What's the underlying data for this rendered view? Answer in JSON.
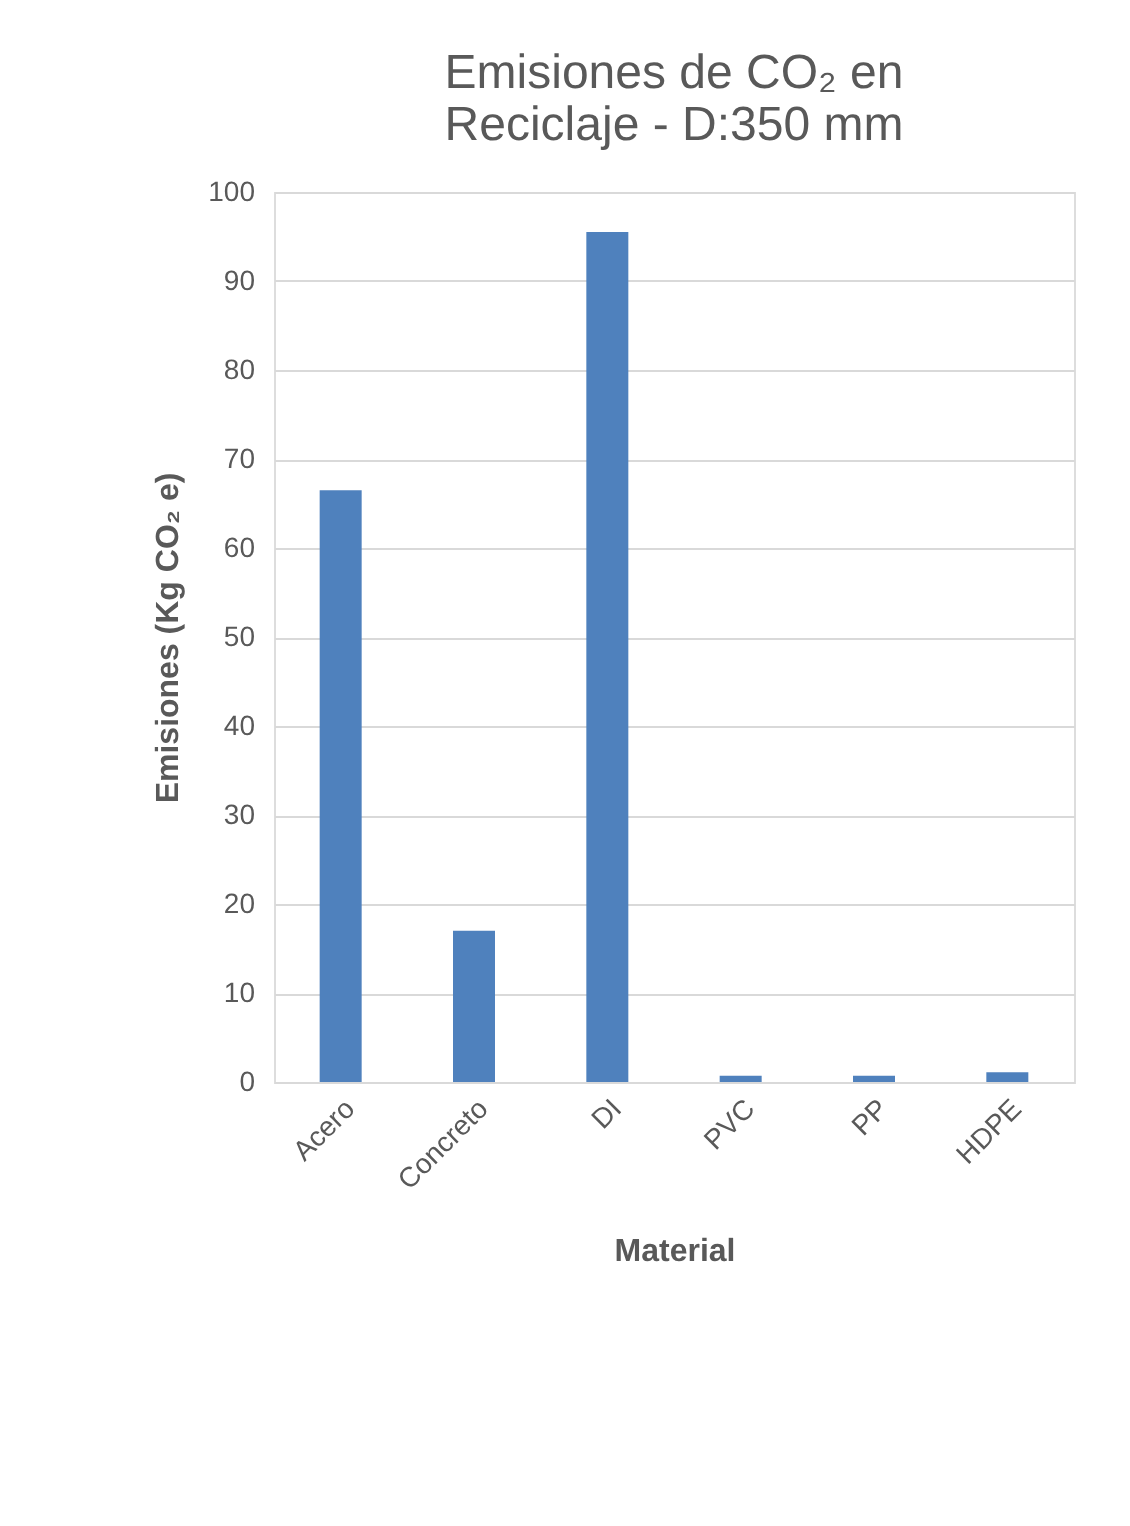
{
  "chart_data": {
    "type": "bar",
    "title": "Emisiones de CO₂ en Reciclaje - D:350 mm",
    "xlabel": "Material",
    "ylabel": "Emisiones  (Kg CO₂ e)",
    "categories": [
      "Acero",
      "Concreto",
      "DI",
      "PVC",
      "PP",
      "HDPE"
    ],
    "values": [
      66.5,
      17.0,
      95.5,
      0.7,
      0.7,
      1.1
    ],
    "color": "#4f81bd",
    "ylim": [
      0,
      100
    ],
    "yticks": [
      0,
      10,
      20,
      30,
      40,
      50,
      60,
      70,
      80,
      90,
      100
    ],
    "grid": "y"
  }
}
